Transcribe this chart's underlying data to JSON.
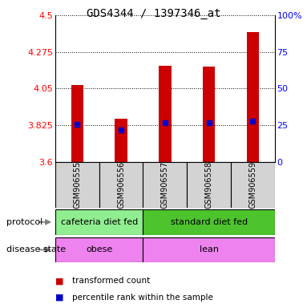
{
  "title": "GDS4344 / 1397346_at",
  "samples": [
    "GSM906555",
    "GSM906556",
    "GSM906557",
    "GSM906558",
    "GSM906559"
  ],
  "bar_values": [
    4.07,
    3.865,
    4.19,
    4.185,
    4.395
  ],
  "bar_base": 3.6,
  "percentile_values": [
    3.828,
    3.793,
    3.842,
    3.838,
    3.852
  ],
  "ylim": [
    3.6,
    4.5
  ],
  "yticks": [
    3.6,
    3.825,
    4.05,
    4.275,
    4.5
  ],
  "ytick_labels": [
    "3.6",
    "3.825",
    "4.05",
    "4.275",
    "4.5"
  ],
  "right_yticks_pct": [
    0,
    25,
    50,
    75,
    100
  ],
  "bar_color": "#cc0000",
  "percentile_color": "#0000cc",
  "bar_width": 0.28,
  "protocol_info": [
    {
      "label": "cafeteria diet fed",
      "start": 0,
      "end": 1,
      "color": "#90ee90"
    },
    {
      "label": "standard diet fed",
      "start": 2,
      "end": 4,
      "color": "#4dc32d"
    }
  ],
  "disease_info": [
    {
      "label": "obese",
      "start": 0,
      "end": 1,
      "color": "#ee82ee"
    },
    {
      "label": "lean",
      "start": 2,
      "end": 4,
      "color": "#ee82ee"
    }
  ],
  "sample_bg_color": "#d3d3d3",
  "protocol_row_label": "protocol",
  "disease_row_label": "disease state",
  "legend_red_label": "transformed count",
  "legend_blue_label": "percentile rank within the sample",
  "title_fontsize": 10,
  "tick_fontsize": 8,
  "sample_fontsize": 7,
  "row_label_fontsize": 8,
  "legend_fontsize": 7.5
}
